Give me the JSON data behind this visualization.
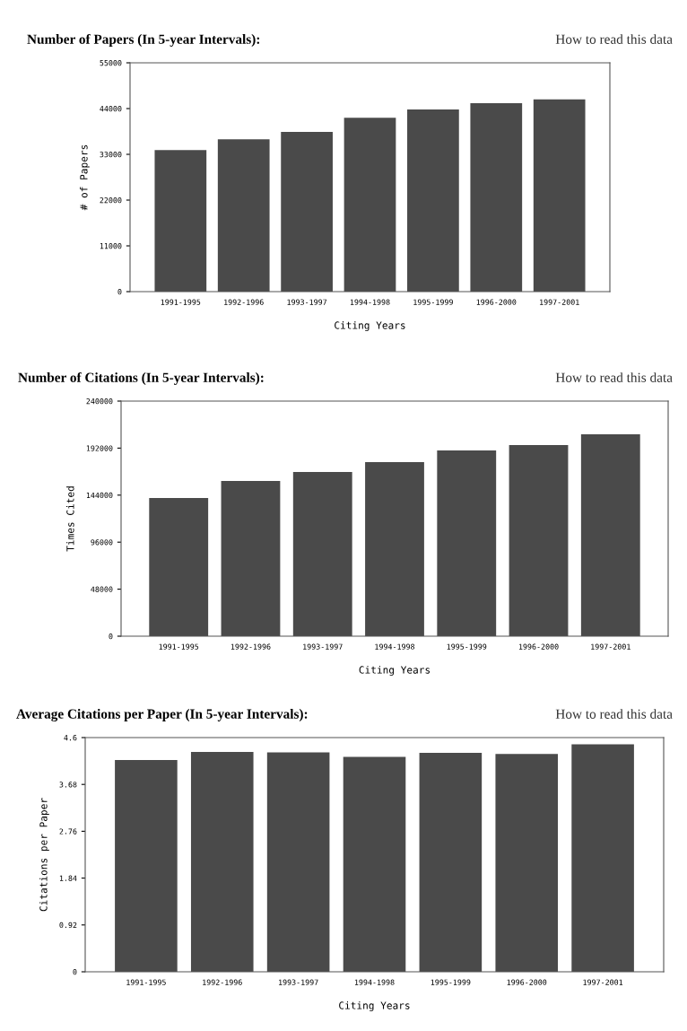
{
  "chart_data": [
    {
      "type": "bar",
      "title": "Number of Papers (In 5-year Intervals):",
      "annotations": [
        "How to read this data"
      ],
      "xlabel": "Citing Years",
      "ylabel": "# of Papers",
      "categories": [
        "1991-1995",
        "1992-1996",
        "1993-1997",
        "1994-1998",
        "1995-1999",
        "1996-2000",
        "1997-2001"
      ],
      "values": [
        34000,
        36600,
        38400,
        41800,
        43800,
        45300,
        46200
      ],
      "color": "#4a4a4a",
      "ylim": [
        0,
        55000
      ],
      "yticks": [
        0,
        11000,
        22000,
        33000,
        44000,
        55000
      ],
      "grid": false,
      "legend": false
    },
    {
      "type": "bar",
      "title": "Number of Citations (In 5-year Intervals):",
      "annotations": [
        "How to read this data"
      ],
      "xlabel": "Citing Years",
      "ylabel": "Times Cited",
      "categories": [
        "1991-1995",
        "1992-1996",
        "1993-1997",
        "1994-1998",
        "1995-1999",
        "1996-2000",
        "1997-2001"
      ],
      "values": [
        141000,
        158500,
        167600,
        177700,
        189600,
        195100,
        206100
      ],
      "color": "#4a4a4a",
      "ylim": [
        0,
        240000
      ],
      "yticks": [
        0,
        48000,
        96000,
        144000,
        192000,
        240000
      ],
      "grid": false,
      "legend": false
    },
    {
      "type": "bar",
      "title": "Average Citations per Paper (In 5-year Intervals):",
      "annotations": [
        "How to read this data"
      ],
      "xlabel": "Citing Years",
      "ylabel": "Citations per Paper",
      "categories": [
        "1991-1995",
        "1992-1996",
        "1993-1997",
        "1994-1998",
        "1995-1999",
        "1996-2000",
        "1997-2001"
      ],
      "values": [
        4.16,
        4.32,
        4.31,
        4.22,
        4.3,
        4.28,
        4.47
      ],
      "color": "#4a4a4a",
      "ylim": [
        0,
        4.6
      ],
      "yticks": [
        0,
        0.92,
        1.84,
        2.76,
        3.68,
        4.6
      ],
      "grid": false,
      "legend": false
    }
  ]
}
